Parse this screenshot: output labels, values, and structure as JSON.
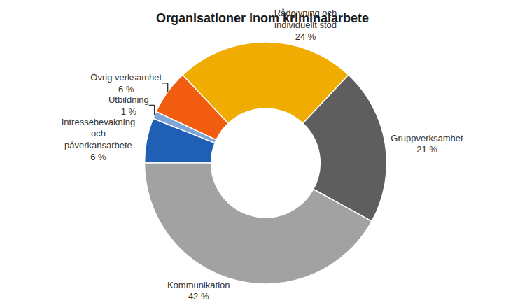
{
  "chart_data": {
    "type": "pie",
    "title": "Organisationer inom kriminalarbete",
    "categories": [
      "Intressebevakning och påverkansarbete",
      "Utbildning",
      "Övrig verksamhet",
      "Rådgivning och individuellt stöd",
      "Gruppverksamhet",
      "Kommunikation"
    ],
    "values": [
      6,
      1,
      6,
      24,
      21,
      42
    ],
    "value_labels": [
      "6 %",
      "1 %",
      "6 %",
      "24 %",
      "21 %",
      "42 %"
    ],
    "colors": [
      "#1f5fb4",
      "#7fa6d6",
      "#f25c0f",
      "#f0ac00",
      "#5e5e5e",
      "#a2a2a2"
    ],
    "data_labels": true
  }
}
